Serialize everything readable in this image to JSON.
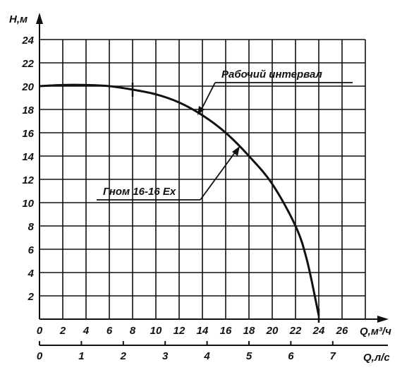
{
  "chart_data": {
    "type": "line",
    "ylabel": "H,м",
    "xlabel": "Q,м³/ч",
    "xlabel_secondary": "Q,л/с",
    "xlim": [
      0,
      28
    ],
    "ylim": [
      0,
      24
    ],
    "x_ticks": [
      "0",
      "2",
      "4",
      "6",
      "8",
      "10",
      "12",
      "14",
      "16",
      "18",
      "20",
      "22",
      "24",
      "26"
    ],
    "y_ticks": [
      "2",
      "4",
      "6",
      "8",
      "10",
      "12",
      "14",
      "16",
      "18",
      "20",
      "22",
      "24"
    ],
    "x_secondary_ticks": [
      "0",
      "1",
      "2",
      "3",
      "4",
      "5",
      "6",
      "7"
    ],
    "grid": true,
    "series": [
      {
        "name": "Гном 16-16 Ex",
        "x": [
          0,
          2,
          4,
          6,
          8,
          10,
          12,
          14,
          16,
          18,
          20,
          22,
          23,
          24
        ],
        "y": [
          20,
          20.1,
          20.1,
          20.0,
          19.7,
          19.3,
          18.6,
          17.5,
          16.0,
          14.0,
          11.6,
          8.0,
          5.0,
          0.3
        ]
      }
    ],
    "annotations": [
      {
        "text": "Рабочий интервал"
      },
      {
        "text": "Гном 16-16 Ex"
      }
    ],
    "working_range": {
      "tick_x": [
        8,
        24
      ]
    }
  }
}
